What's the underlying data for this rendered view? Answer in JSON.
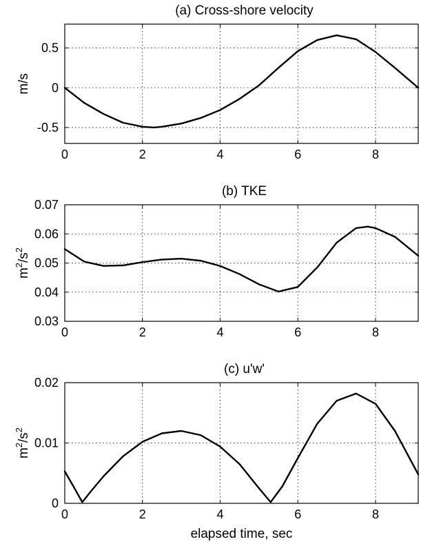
{
  "chart_data": [
    {
      "type": "line",
      "title": "(a) Cross-shore velocity",
      "ylabel": "m/s",
      "ylabel_sup": "",
      "ylabel_tail": "",
      "xlabel": "",
      "xlim": [
        0,
        9.1
      ],
      "ylim": [
        -0.7,
        0.8
      ],
      "xticks": [
        0,
        2,
        4,
        6,
        8
      ],
      "yticks": [
        -0.5,
        0,
        0.5
      ],
      "ytick_labels": [
        "-0.5",
        "0",
        "0.5"
      ],
      "grid": true,
      "x": [
        0,
        0.5,
        1.0,
        1.5,
        2.0,
        2.3,
        2.5,
        3.0,
        3.5,
        4.0,
        4.5,
        5.0,
        5.5,
        6.0,
        6.5,
        7.0,
        7.5,
        8.0,
        8.5,
        9.1
      ],
      "y": [
        0,
        -0.19,
        -0.33,
        -0.44,
        -0.49,
        -0.5,
        -0.49,
        -0.45,
        -0.38,
        -0.28,
        -0.14,
        0.03,
        0.25,
        0.46,
        0.6,
        0.66,
        0.61,
        0.45,
        0.25,
        0
      ]
    },
    {
      "type": "line",
      "title": "(b) TKE",
      "ylabel": "m",
      "ylabel_sup": "2",
      "ylabel_tail": "/s",
      "ylabel_tail_sup": "2",
      "xlabel": "",
      "xlim": [
        0,
        9.1
      ],
      "ylim": [
        0.03,
        0.07
      ],
      "xticks": [
        0,
        2,
        4,
        6,
        8
      ],
      "yticks": [
        0.03,
        0.04,
        0.05,
        0.06,
        0.07
      ],
      "ytick_labels": [
        "0.03",
        "0.04",
        "0.05",
        "0.06",
        "0.07"
      ],
      "grid": true,
      "x": [
        0,
        0.5,
        1.0,
        1.5,
        2.0,
        2.5,
        3.0,
        3.5,
        4.0,
        4.5,
        5.0,
        5.5,
        6.0,
        6.5,
        7.0,
        7.5,
        7.8,
        8.0,
        8.5,
        9.1
      ],
      "y": [
        0.0548,
        0.0505,
        0.049,
        0.0492,
        0.0503,
        0.0512,
        0.0515,
        0.0508,
        0.049,
        0.0462,
        0.0427,
        0.0402,
        0.0418,
        0.0485,
        0.057,
        0.062,
        0.0625,
        0.062,
        0.059,
        0.0525
      ]
    },
    {
      "type": "line",
      "title": "(c) u'w'",
      "ylabel": "m",
      "ylabel_sup": "2",
      "ylabel_tail": "/s",
      "ylabel_tail_sup": "2",
      "xlabel": "elapsed time, sec",
      "xlim": [
        0,
        9.1
      ],
      "ylim": [
        0,
        0.02
      ],
      "xticks": [
        0,
        2,
        4,
        6,
        8
      ],
      "yticks": [
        0,
        0.01,
        0.02
      ],
      "ytick_labels": [
        "0",
        "0.01",
        "0.02"
      ],
      "grid": true,
      "x": [
        0,
        0.25,
        0.45,
        0.7,
        1.0,
        1.5,
        2.0,
        2.5,
        3.0,
        3.5,
        4.0,
        4.5,
        5.0,
        5.3,
        5.6,
        6.0,
        6.5,
        7.0,
        7.5,
        8.0,
        8.5,
        9.1
      ],
      "y": [
        0.0053,
        0.0025,
        0.0002,
        0.0022,
        0.0045,
        0.0078,
        0.0102,
        0.0116,
        0.012,
        0.0113,
        0.0094,
        0.0065,
        0.0025,
        0.0002,
        0.0028,
        0.0075,
        0.0132,
        0.017,
        0.0182,
        0.0165,
        0.012,
        0.0048
      ]
    }
  ]
}
